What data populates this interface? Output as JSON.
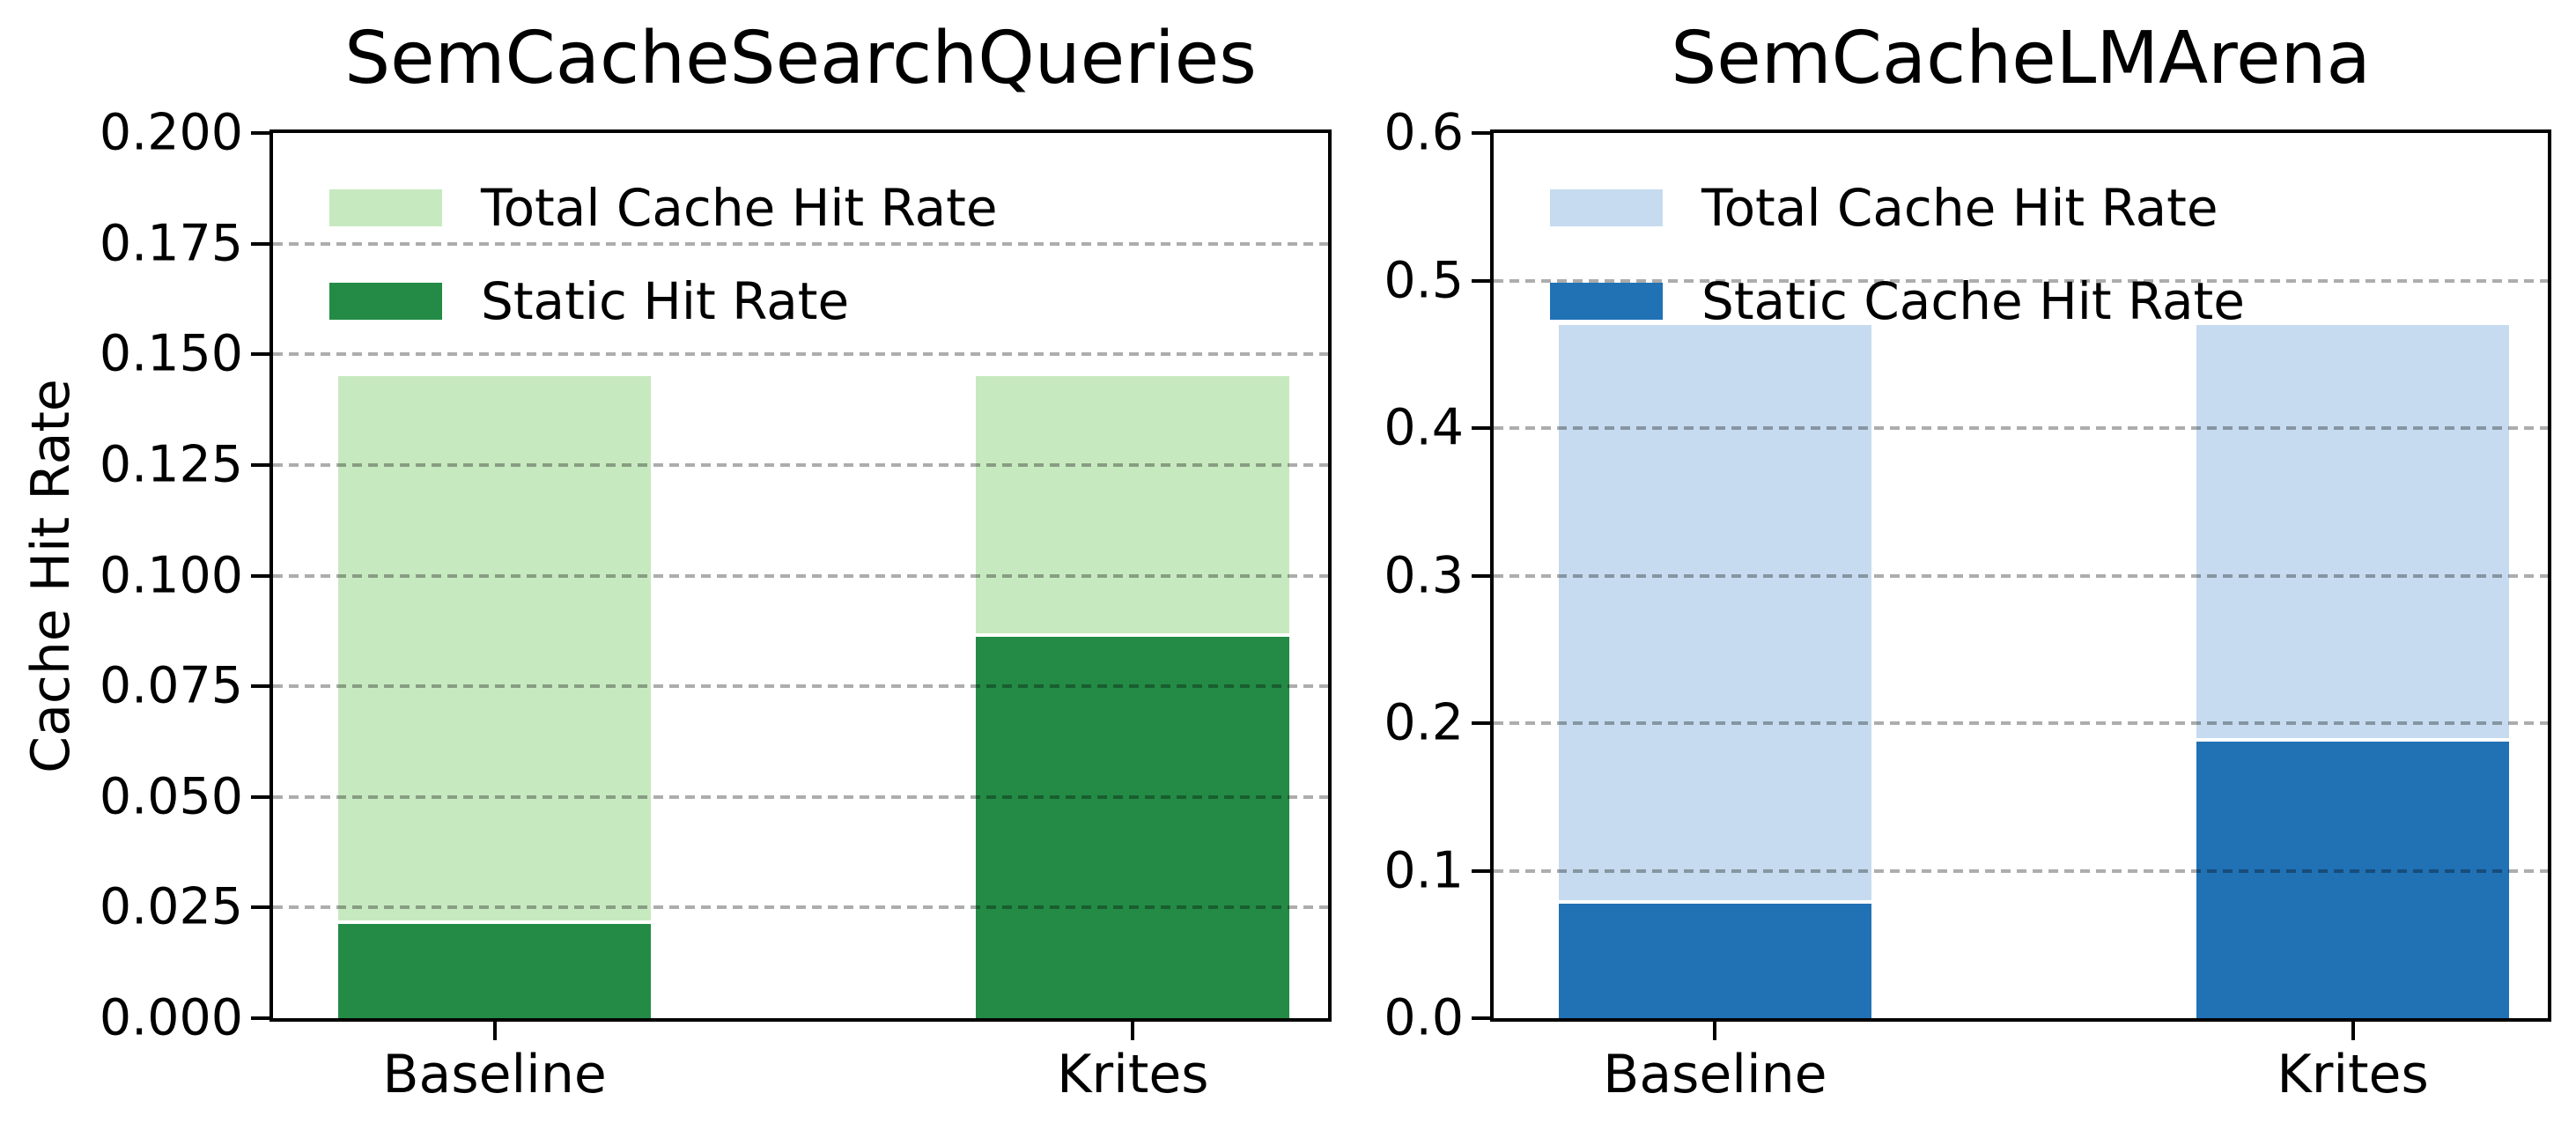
{
  "figure": {
    "background_color": "#ffffff",
    "grid_color": "#b0b0b0",
    "grid_style": "dashed"
  },
  "chart_data": [
    {
      "type": "bar",
      "title": "SemCacheSearchQueries",
      "ylabel": "Cache Hit Rate",
      "xlabel": "",
      "categories": [
        "Baseline",
        "Krites"
      ],
      "series": [
        {
          "name": "Total Cache Hit Rate",
          "color": "#c7e9c0",
          "values": [
            0.145,
            0.145
          ]
        },
        {
          "name": "Static Hit Rate",
          "color": "#238b45",
          "values": [
            0.022,
            0.087
          ]
        }
      ],
      "overlay_bars": true,
      "ylim": [
        0.0,
        0.2
      ],
      "yticks": [
        {
          "value": 0.0,
          "label": "0.000"
        },
        {
          "value": 0.025,
          "label": "0.025"
        },
        {
          "value": 0.05,
          "label": "0.050"
        },
        {
          "value": 0.075,
          "label": "0.075"
        },
        {
          "value": 0.1,
          "label": "0.100"
        },
        {
          "value": 0.125,
          "label": "0.125"
        },
        {
          "value": 0.15,
          "label": "0.150"
        },
        {
          "value": 0.175,
          "label": "0.175"
        },
        {
          "value": 0.2,
          "label": "0.200"
        }
      ],
      "grid": true,
      "legend_location": "upper left"
    },
    {
      "type": "bar",
      "title": "SemCacheLMArena",
      "ylabel": "",
      "xlabel": "",
      "categories": [
        "Baseline",
        "Krites"
      ],
      "series": [
        {
          "name": "Total Cache Hit Rate",
          "color": "#c6dbef",
          "values": [
            0.47,
            0.47
          ]
        },
        {
          "name": "Static Cache Hit Rate",
          "color": "#2171b5",
          "values": [
            0.08,
            0.19
          ]
        }
      ],
      "overlay_bars": true,
      "ylim": [
        0.0,
        0.6
      ],
      "yticks": [
        {
          "value": 0.0,
          "label": "0.0"
        },
        {
          "value": 0.1,
          "label": "0.1"
        },
        {
          "value": 0.2,
          "label": "0.2"
        },
        {
          "value": 0.3,
          "label": "0.3"
        },
        {
          "value": 0.4,
          "label": "0.4"
        },
        {
          "value": 0.5,
          "label": "0.5"
        },
        {
          "value": 0.6,
          "label": "0.6"
        }
      ],
      "grid": true,
      "legend_location": "upper left"
    }
  ]
}
